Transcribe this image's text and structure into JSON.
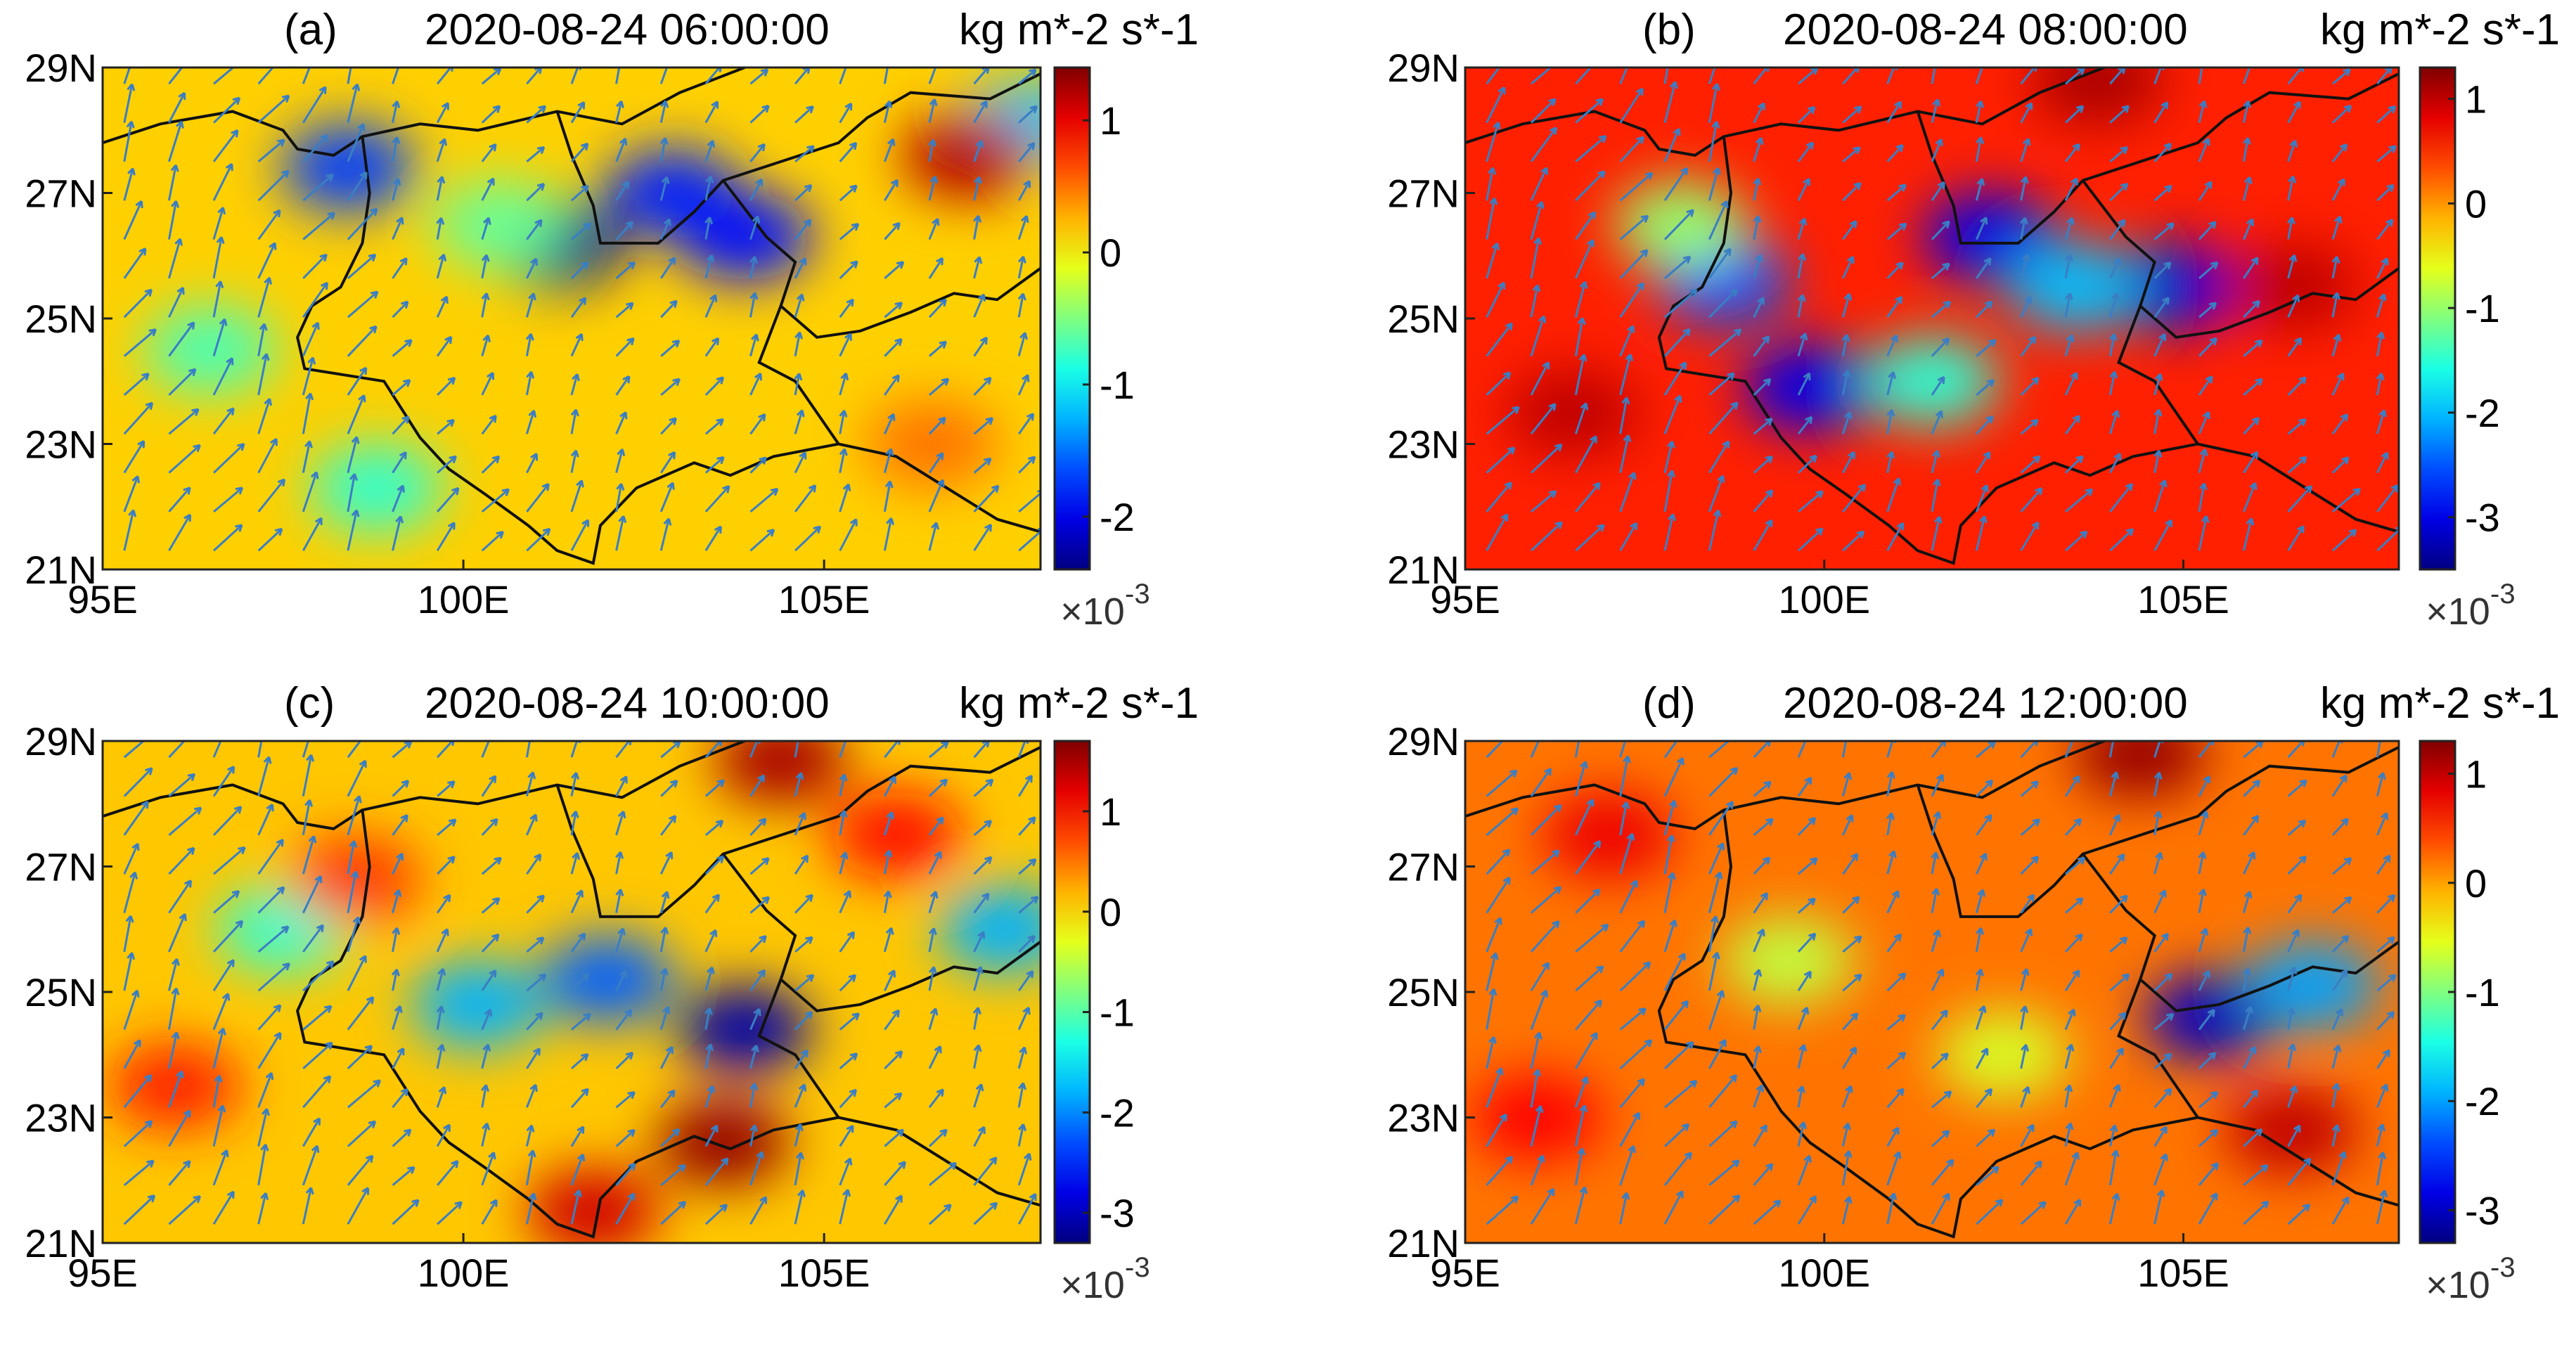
{
  "chart_data": [
    {
      "panel": "(a)",
      "type": "heatmap",
      "title": "2020-08-24 06:00:00",
      "units": "kg m*-2 s*-1",
      "colorbar_multiplier": "×10",
      "colorbar_exponent": "-3",
      "colorbar_range": [
        -2.4,
        1.4
      ],
      "colorbar_ticks": [
        "1",
        "0",
        "-1",
        "-2"
      ],
      "colorbar_tick_values": [
        1,
        0,
        -1,
        -2
      ],
      "x_ticks": [
        "95E",
        "100E",
        "105E"
      ],
      "x_tick_values": [
        95,
        100,
        105
      ],
      "y_ticks": [
        "29N",
        "27N",
        "25N",
        "23N",
        "21N"
      ],
      "y_tick_values": [
        29,
        27,
        25,
        23,
        21
      ],
      "xlim": [
        95,
        108
      ],
      "ylim": [
        21,
        29
      ],
      "background_value": 0.15,
      "features": [
        {
          "lon": 101.3,
          "lat": 26.2,
          "value": -2.3
        },
        {
          "lon": 102.9,
          "lat": 27.0,
          "value": -1.8
        },
        {
          "lon": 103.9,
          "lat": 26.3,
          "value": -1.9
        },
        {
          "lon": 98.4,
          "lat": 27.4,
          "value": -1.7
        },
        {
          "lon": 107.8,
          "lat": 28.1,
          "value": -1.2
        },
        {
          "lon": 107.0,
          "lat": 27.6,
          "value": 1.2
        },
        {
          "lon": 96.5,
          "lat": 24.5,
          "value": -0.7
        },
        {
          "lon": 98.8,
          "lat": 22.3,
          "value": -0.8
        },
        {
          "lon": 100.5,
          "lat": 26.5,
          "value": -0.6
        },
        {
          "lon": 106.5,
          "lat": 23.0,
          "value": 0.5
        }
      ]
    },
    {
      "panel": "(b)",
      "type": "heatmap",
      "title": "2020-08-24 08:00:00",
      "units": "kg m*-2 s*-1",
      "colorbar_multiplier": "×10",
      "colorbar_exponent": "-3",
      "colorbar_range": [
        -3.5,
        1.3
      ],
      "colorbar_ticks": [
        "1",
        "0",
        "-1",
        "-2",
        "-3"
      ],
      "colorbar_tick_values": [
        1,
        0,
        -1,
        -2,
        -3
      ],
      "x_ticks": [
        "95E",
        "100E",
        "105E"
      ],
      "x_tick_values": [
        95,
        100,
        105
      ],
      "y_ticks": [
        "29N",
        "27N",
        "25N",
        "23N",
        "21N"
      ],
      "y_tick_values": [
        29,
        27,
        25,
        23,
        21
      ],
      "xlim": [
        95,
        108
      ],
      "ylim": [
        21,
        29
      ],
      "background_value": 0.55,
      "features": [
        {
          "lon": 102.3,
          "lat": 26.3,
          "value": -3.0
        },
        {
          "lon": 104.9,
          "lat": 25.5,
          "value": -3.1
        },
        {
          "lon": 99.8,
          "lat": 23.9,
          "value": -3.0
        },
        {
          "lon": 98.6,
          "lat": 25.6,
          "value": -2.5
        },
        {
          "lon": 103.5,
          "lat": 25.5,
          "value": -2.0
        },
        {
          "lon": 101.5,
          "lat": 24.0,
          "value": -1.5
        },
        {
          "lon": 98.0,
          "lat": 26.5,
          "value": -1.0
        },
        {
          "lon": 103.8,
          "lat": 28.8,
          "value": 1.1
        },
        {
          "lon": 96.5,
          "lat": 23.5,
          "value": 1.0
        },
        {
          "lon": 106.5,
          "lat": 25.5,
          "value": 1.0
        }
      ]
    },
    {
      "panel": "(c)",
      "type": "heatmap",
      "title": "2020-08-24 10:00:00",
      "units": "kg m*-2 s*-1",
      "colorbar_multiplier": "×10",
      "colorbar_exponent": "-3",
      "colorbar_range": [
        -3.3,
        1.7
      ],
      "colorbar_ticks": [
        "1",
        "0",
        "-1",
        "-2",
        "-3"
      ],
      "colorbar_tick_values": [
        1,
        0,
        -1,
        -2,
        -3
      ],
      "x_ticks": [
        "95E",
        "100E",
        "105E"
      ],
      "x_tick_values": [
        95,
        100,
        105
      ],
      "y_ticks": [
        "29N",
        "27N",
        "25N",
        "23N",
        "21N"
      ],
      "y_tick_values": [
        29,
        27,
        25,
        23,
        21
      ],
      "xlim": [
        95,
        108
      ],
      "ylim": [
        21,
        29
      ],
      "background_value": 0.1,
      "features": [
        {
          "lon": 103.9,
          "lat": 24.4,
          "value": -3.1
        },
        {
          "lon": 102.0,
          "lat": 25.2,
          "value": -2.2
        },
        {
          "lon": 100.2,
          "lat": 24.8,
          "value": -1.8
        },
        {
          "lon": 107.5,
          "lat": 26.0,
          "value": -1.8
        },
        {
          "lon": 104.4,
          "lat": 28.7,
          "value": 1.5
        },
        {
          "lon": 106.0,
          "lat": 27.5,
          "value": 1.0
        },
        {
          "lon": 103.6,
          "lat": 22.6,
          "value": 1.6
        },
        {
          "lon": 101.8,
          "lat": 21.5,
          "value": 1.3
        },
        {
          "lon": 97.5,
          "lat": 26.0,
          "value": -1.2
        },
        {
          "lon": 96.0,
          "lat": 23.5,
          "value": 0.9
        },
        {
          "lon": 98.5,
          "lat": 26.8,
          "value": 0.8
        }
      ]
    },
    {
      "panel": "(d)",
      "type": "heatmap",
      "title": "2020-08-24 12:00:00",
      "units": "kg m*-2 s*-1",
      "colorbar_multiplier": "×10",
      "colorbar_exponent": "-3",
      "colorbar_range": [
        -3.3,
        1.3
      ],
      "colorbar_ticks": [
        "1",
        "0",
        "-1",
        "-2",
        "-3"
      ],
      "colorbar_tick_values": [
        1,
        0,
        -1,
        -2,
        -3
      ],
      "x_ticks": [
        "95E",
        "100E",
        "105E"
      ],
      "x_tick_values": [
        95,
        100,
        105
      ],
      "y_ticks": [
        "29N",
        "27N",
        "25N",
        "23N",
        "21N"
      ],
      "y_tick_values": [
        29,
        27,
        25,
        23,
        21
      ],
      "xlim": [
        95,
        108
      ],
      "ylim": [
        21,
        29
      ],
      "background_value": 0.2,
      "features": [
        {
          "lon": 105.4,
          "lat": 24.6,
          "value": -3.0
        },
        {
          "lon": 106.8,
          "lat": 25.1,
          "value": -2.0
        },
        {
          "lon": 104.4,
          "lat": 28.8,
          "value": 1.2
        },
        {
          "lon": 106.5,
          "lat": 22.8,
          "value": 1.0
        },
        {
          "lon": 97.0,
          "lat": 27.5,
          "value": 0.8
        },
        {
          "lon": 99.5,
          "lat": 25.5,
          "value": -0.7
        },
        {
          "lon": 102.5,
          "lat": 24.0,
          "value": -0.6
        },
        {
          "lon": 96.0,
          "lat": 23.0,
          "value": 0.7
        }
      ]
    }
  ]
}
